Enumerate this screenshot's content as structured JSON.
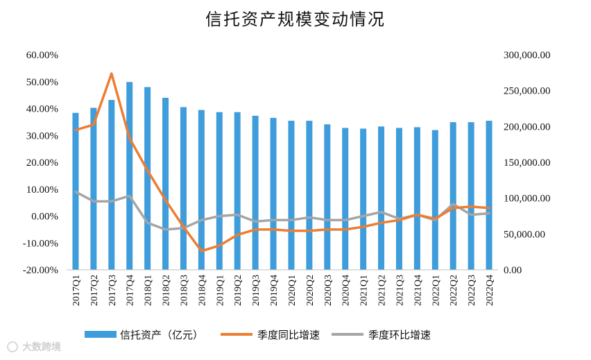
{
  "chart_data": {
    "type": "bar",
    "title": "信托资产规模变动情况",
    "categories": [
      "2017Q1",
      "2017Q2",
      "2017Q3",
      "2017Q4",
      "2018Q1",
      "2018Q2",
      "2018Q3",
      "2018Q4",
      "2019Q1",
      "2019Q2",
      "2019Q3",
      "2019Q4",
      "2020Q1",
      "2020Q2",
      "2020Q3",
      "2020Q4",
      "2021Q1",
      "2021Q2",
      "2021Q3",
      "2021Q4",
      "2022Q1",
      "2022Q2",
      "2022Q3",
      "2022Q4"
    ],
    "left_axis": {
      "range": [
        -20,
        60
      ],
      "ticks": [
        "60.00%",
        "50.00%",
        "40.00%",
        "30.00%",
        "20.00%",
        "10.00%",
        "0.00%",
        "-10.00%",
        "-20.00%"
      ]
    },
    "right_axis": {
      "range": [
        0,
        300000
      ],
      "ticks": [
        "300,000.00",
        "250,000.00",
        "200,000.00",
        "150,000.00",
        "100,000.00",
        "50,000.00",
        "0.00"
      ]
    },
    "series": [
      {
        "name": "信托资产（亿元）",
        "type": "bar",
        "axis": "right",
        "color": "#3f9ddb",
        "values": [
          219000,
          226000,
          237000,
          262000,
          255000,
          240000,
          227000,
          223000,
          220000,
          220000,
          215000,
          212000,
          208000,
          208000,
          203000,
          198000,
          197000,
          200000,
          198000,
          199000,
          195000,
          206000,
          206000,
          208000
        ]
      },
      {
        "name": "季度同比增速",
        "type": "line",
        "axis": "left",
        "color": "#ed7d31",
        "values": [
          32.0,
          34.0,
          53.0,
          29.0,
          17.0,
          6.0,
          -4.0,
          -13.0,
          -11.0,
          -7.0,
          -5.0,
          -5.0,
          -5.5,
          -5.5,
          -5.0,
          -5.0,
          -4.0,
          -2.5,
          -1.5,
          0.5,
          -1.0,
          3.0,
          3.5,
          3.0
        ]
      },
      {
        "name": "季度环比增速",
        "type": "line",
        "axis": "left",
        "color": "#a5a5a5",
        "values": [
          9.0,
          5.5,
          5.5,
          7.5,
          -2.5,
          -5.0,
          -4.5,
          -1.5,
          0.0,
          0.5,
          -2.0,
          -1.5,
          -1.5,
          -0.5,
          -1.5,
          -1.5,
          0.0,
          1.5,
          -1.0,
          0.5,
          -1.5,
          4.5,
          0.5,
          1.0
        ]
      }
    ],
    "legend": [
      "信托资产（亿元）",
      "季度同比增速",
      "季度环比增速"
    ],
    "legend_position": "bottom",
    "grid": false
  },
  "watermark": "大数跨境"
}
